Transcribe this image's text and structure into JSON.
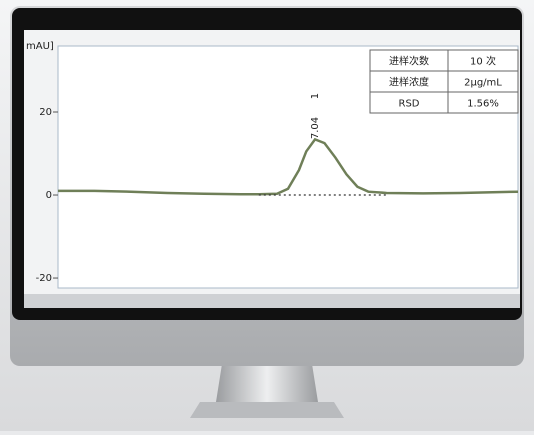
{
  "chart_data": {
    "type": "line",
    "ylabel": "mAU]",
    "x": [
      0,
      1,
      2,
      3,
      4,
      5,
      5.5,
      6,
      6.3,
      6.6,
      6.8,
      7.04,
      7.3,
      7.6,
      7.9,
      8.2,
      8.5,
      9,
      10,
      11,
      12.6
    ],
    "series": [
      {
        "color": "#6f7f58",
        "values": [
          1,
          1,
          0.8,
          0.5,
          0.3,
          0.2,
          0.2,
          0.3,
          1.5,
          6,
          10.5,
          13.4,
          12.5,
          9,
          5,
          2,
          0.8,
          0.5,
          0.4,
          0.5,
          0.8
        ]
      },
      {
        "color": "#333333",
        "style": "dotted",
        "values": [
          null,
          null,
          null,
          null,
          null,
          null,
          0,
          0,
          0,
          0,
          0,
          0,
          0,
          0,
          0,
          0,
          0,
          0,
          null,
          null,
          null
        ]
      }
    ],
    "xlim": [
      0,
      12.6
    ],
    "ylim": [
      -22.4,
      35.9
    ],
    "yticks": [
      20,
      0,
      -20
    ],
    "annotations": [
      "7.04",
      "1"
    ],
    "table": [
      [
        "进样次数",
        "10 次"
      ],
      [
        "进样浓度",
        "2μg/mL"
      ],
      [
        "RSD",
        "1.56%"
      ]
    ]
  }
}
